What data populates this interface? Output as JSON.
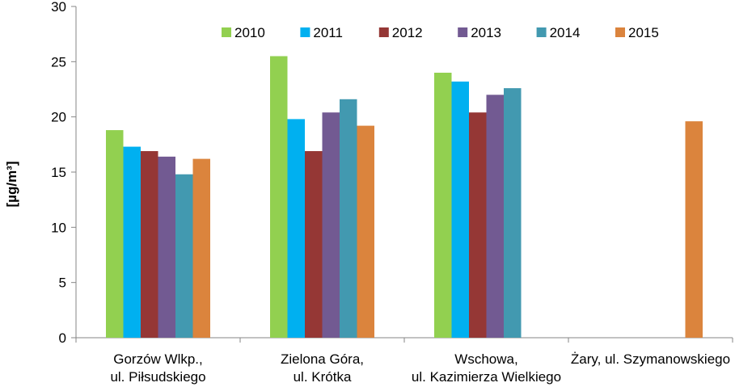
{
  "chart_data": {
    "type": "bar",
    "ylabel": "[µg/m³]",
    "ylim": [
      0,
      30
    ],
    "yticks": [
      0,
      5,
      10,
      15,
      20,
      25,
      30
    ],
    "grid": false,
    "legend_position": "top",
    "categories": [
      [
        "Gorzów Wlkp.,",
        "ul. Piłsudskiego"
      ],
      [
        "Zielona Góra,",
        "ul. Krótka"
      ],
      [
        "Wschowa,",
        "ul. Kazimierza Wielkiego"
      ],
      [
        "Żary, ul. Szymanowskiego"
      ]
    ],
    "series": [
      {
        "name": "2010",
        "color": "#92D050",
        "values": [
          18.8,
          25.5,
          24.0,
          null
        ]
      },
      {
        "name": "2011",
        "color": "#00B0F0",
        "values": [
          17.3,
          19.8,
          23.2,
          null
        ]
      },
      {
        "name": "2012",
        "color": "#953735",
        "values": [
          16.9,
          16.9,
          20.4,
          null
        ]
      },
      {
        "name": "2013",
        "color": "#725A92",
        "values": [
          16.4,
          20.4,
          22.0,
          null
        ]
      },
      {
        "name": "2014",
        "color": "#4299B0",
        "values": [
          14.8,
          21.6,
          22.6,
          null
        ]
      },
      {
        "name": "2015",
        "color": "#DB843D",
        "values": [
          16.2,
          19.2,
          null,
          19.6
        ]
      }
    ]
  }
}
